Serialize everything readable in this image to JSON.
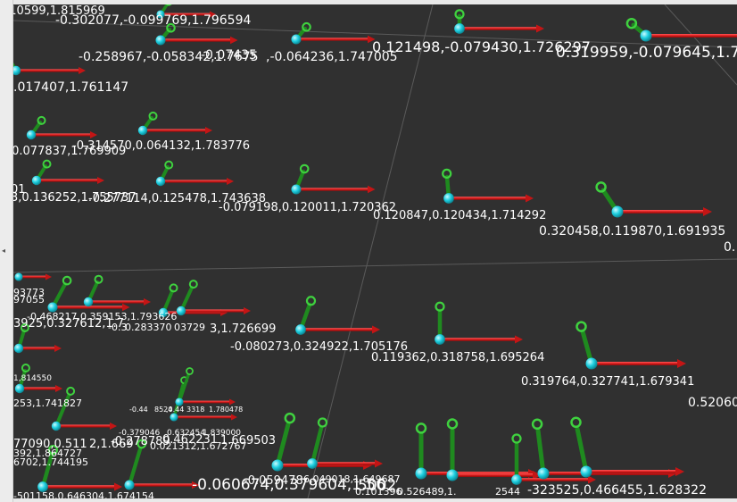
{
  "viewport": {
    "background": "#303030",
    "grid_color": "#555555",
    "x_axis_color": "#d81b1b",
    "y_axis_color": "#1f8a1f",
    "origin_color": "#1ecfe0",
    "labels": [
      "110599,1.815969",
      "-0.302077,-0.099769,1.796594",
      "-0.258967,-0.058342,1.7675",
      "-0.07435",
      ",-0.064236,1.747005",
      "0.121498,-0.079430,1.726297",
      "0.319959,-0.079645,1.70",
      ".017407,1.761147",
      ",0.077837,1.769909",
      "-0.314570,0.064132,1.783776",
      "01",
      "3,0.136252,1.755737",
      "-0.277114,0.125478,1.743638",
      "-0.079198,0.120011,1.720362",
      "0.120847,0.120434,1.714292",
      "0.320458,0.119870,1.691935",
      "0.",
      "93773",
      "97055",
      "-0.468217,0.359153,1.793626",
      "3925,0.327612,1.7",
      "-0.3",
      "0.283370",
      "03729",
      "3,1.726699",
      "-0.080273,0.324922,1.705176",
      "0.119362,0.318758,1.695264",
      "0.319764,0.327741,1.679341",
      "0.52060",
      "1,814550",
      "253,1.741827",
      "-0.44",
      "8524",
      ",0.44",
      "3318",
      "1.780478",
      "-0.379046",
      "0.632454",
      "1.839000",
      "77090,0.511",
      "2,1.669",
      "-0.278789",
      "0.462231",
      "1.669503",
      "392,1.864727",
      "0.021312,1.672767",
      "6702,1.744195",
      "-0.059478",
      "6,049018,1.649687",
      "-0.060674,0.379604,1.56",
      "5002",
      "-501158,0.646304,1.674154",
      "0.101396",
      "0.526489,1.",
      "2544",
      "-323525,0.466455,1.628322"
    ]
  }
}
